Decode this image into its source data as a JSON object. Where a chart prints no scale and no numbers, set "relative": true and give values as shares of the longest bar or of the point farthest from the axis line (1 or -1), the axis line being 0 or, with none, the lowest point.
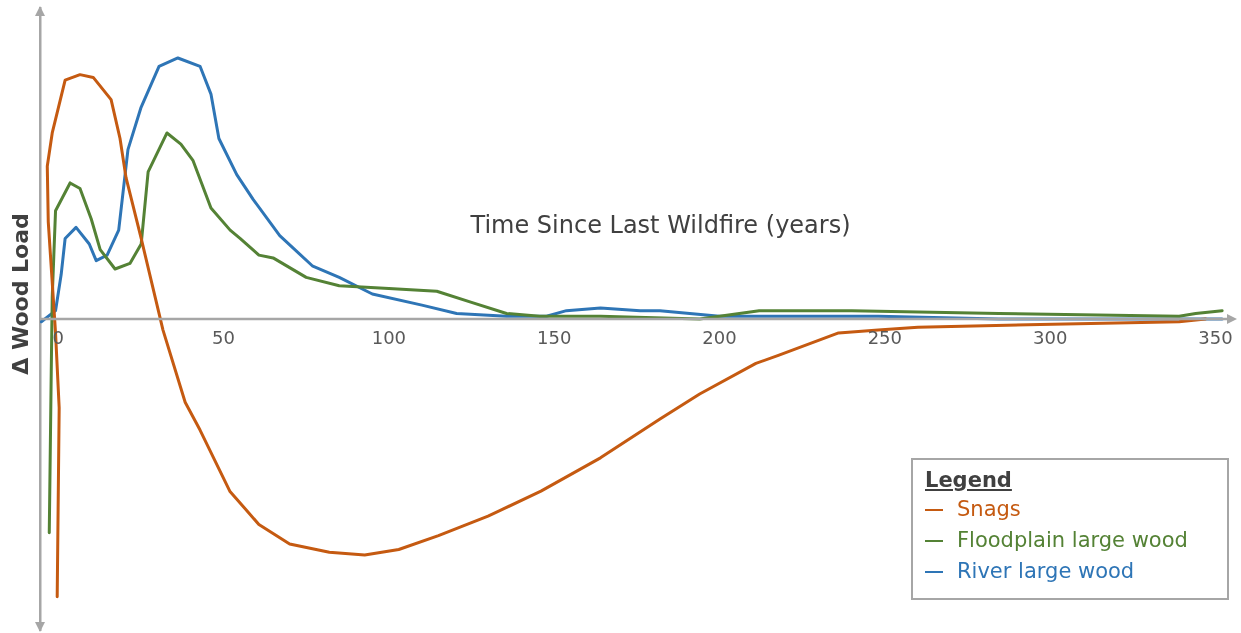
{
  "chart_data": {
    "type": "line",
    "xlabel": "Time Since Last Wildfire (years)",
    "ylabel": "Δ Wood Load",
    "legend_title": "Legend",
    "legend": "bottom right",
    "relative": true,
    "tick_labels": "x",
    "xlim": [
      -5.5,
      356.5
    ],
    "xticks": [
      0,
      50,
      100,
      150,
      200,
      250,
      300,
      350
    ],
    "marker": "none",
    "line_style": "solid",
    "series": [
      {
        "name": "Snags",
        "color": "#c55a11",
        "x": [
          -0.3,
          0.3,
          -0.8,
          -3.0,
          -3.3,
          -1.8,
          2.1,
          6.6,
          10.6,
          16.0,
          18.7,
          20.5,
          25.1,
          31.7,
          38.4,
          42.9,
          51.9,
          60.7,
          70,
          82,
          92.7,
          103,
          115,
          130,
          146,
          164,
          182,
          194,
          211,
          218,
          236,
          248,
          260,
          297,
          339,
          347
        ],
        "values": [
          -1,
          -0.32,
          -0.05,
          0.35,
          0.55,
          0.67,
          0.86,
          0.88,
          0.87,
          0.79,
          0.65,
          0.51,
          0.29,
          -0.04,
          -0.3,
          -0.4,
          -0.62,
          -0.74,
          -0.81,
          -0.84,
          -0.85,
          -0.83,
          -0.78,
          -0.71,
          -0.62,
          -0.5,
          -0.36,
          -0.27,
          -0.16,
          -0.13,
          -0.05,
          -0.04,
          -0.03,
          -0.02,
          -0.01,
          0
        ]
      },
      {
        "name": "Floodplain large wood",
        "color": "#548235",
        "x": [
          -2.7,
          -2.1,
          -1.8,
          -0.8,
          3.6,
          6.6,
          10,
          12.7,
          17.2,
          21.7,
          25.1,
          27.2,
          32.9,
          37.1,
          40.8,
          46.2,
          52,
          55,
          60.7,
          65,
          75,
          85,
          100,
          114.5,
          125,
          135.6,
          145.6,
          164,
          194,
          212,
          240,
          284.5,
          339,
          344,
          352
        ],
        "values": [
          -0.77,
          -0.19,
          0.08,
          0.39,
          0.49,
          0.47,
          0.36,
          0.25,
          0.18,
          0.2,
          0.27,
          0.53,
          0.67,
          0.63,
          0.57,
          0.4,
          0.32,
          0.29,
          0.23,
          0.22,
          0.15,
          0.12,
          0.11,
          0.1,
          0.06,
          0.02,
          0.01,
          0.01,
          0,
          0.03,
          0.03,
          0.02,
          0.01,
          0.02,
          0.03
        ]
      },
      {
        "name": "River large wood",
        "color": "#2e75b6",
        "x": [
          -5.1,
          -0.8,
          0.9,
          2.1,
          5.4,
          9.4,
          11.5,
          14.8,
          18.3,
          21.1,
          25,
          30.5,
          36.2,
          42.9,
          46.2,
          48.6,
          54,
          59,
          67,
          77,
          85,
          95,
          110,
          120.5,
          135.6,
          147.7,
          153.7,
          164,
          176,
          182,
          200,
          248,
          284.5,
          321,
          352
        ],
        "values": [
          -0.01,
          0.03,
          0.16,
          0.29,
          0.33,
          0.27,
          0.21,
          0.23,
          0.32,
          0.61,
          0.76,
          0.91,
          0.94,
          0.91,
          0.81,
          0.65,
          0.52,
          0.43,
          0.3,
          0.19,
          0.15,
          0.09,
          0.05,
          0.02,
          0.01,
          0.01,
          0.03,
          0.04,
          0.03,
          0.03,
          0.01,
          0.01,
          0,
          0,
          0
        ]
      }
    ]
  }
}
